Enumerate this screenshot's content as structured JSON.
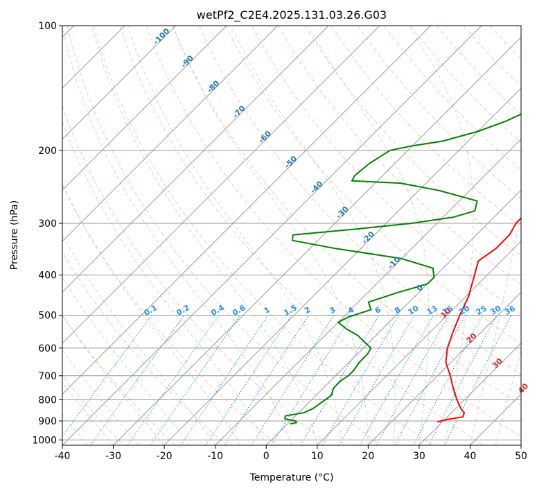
{
  "chart_data": {
    "type": "line",
    "title": "wetPf2_C2E4.2025.131.03.26.G03",
    "xlabel": "Temperature (°C)",
    "ylabel": "Pressure (hPa)",
    "xlim": [
      -40,
      50
    ],
    "ylim": [
      1030,
      100
    ],
    "y_scale": "log",
    "x_ticks": [
      -40,
      -30,
      -20,
      -10,
      0,
      10,
      20,
      30,
      40,
      50
    ],
    "y_ticks": [
      100,
      200,
      300,
      400,
      500,
      600,
      700,
      800,
      900,
      1000
    ],
    "grid": true,
    "series": [
      {
        "color": "#ff0000",
        "pressure": [
          905,
          895,
          880,
          860,
          840,
          800,
          750,
          700,
          650,
          600,
          550,
          500,
          450,
          400,
          370,
          345,
          320,
          300,
          285,
          275,
          260,
          245,
          230,
          215,
          200,
          180,
          160,
          145,
          130,
          120,
          112,
          105,
          100
        ],
        "temperature": [
          29.0,
          30.0,
          33.0,
          32.5,
          31.0,
          28.5,
          25.5,
          22.5,
          19.0,
          16.5,
          14.5,
          12.5,
          10.5,
          7.5,
          5.5,
          6.5,
          6.5,
          5.5,
          5.5,
          6.8,
          9.5,
          12.5,
          14.0,
          14.0,
          13.5,
          12.5,
          11.0,
          10.0,
          9.0,
          9.5,
          10.0,
          10.5,
          10.5
        ]
      },
      {
        "color": "#008000",
        "pressure": [
          915,
          908,
          900,
          890,
          875,
          860,
          840,
          810,
          780,
          750,
          720,
          700,
          680,
          650,
          620,
          600,
          580,
          560,
          540,
          520,
          505,
          485,
          465,
          440,
          420,
          405,
          385,
          365,
          345,
          330,
          320,
          310,
          300,
          290,
          280,
          265,
          250,
          240,
          237,
          230,
          215,
          200,
          195,
          190,
          180,
          170,
          160,
          150,
          140,
          130,
          120,
          110,
          100
        ],
        "temperature": [
          0.5,
          1.5,
          1.0,
          -1.5,
          -2.0,
          1.0,
          2.0,
          2.5,
          3.0,
          2.0,
          2.0,
          2.5,
          2.5,
          2.0,
          2.0,
          1.5,
          -1.0,
          -3.5,
          -7.0,
          -10.0,
          -9.0,
          -6.0,
          -8.0,
          -4.0,
          0.0,
          0.0,
          -2.0,
          -10.0,
          -25.0,
          -35.0,
          -36.0,
          -25.0,
          -15.0,
          -8.0,
          -5.0,
          -6.5,
          -16.0,
          -25.0,
          -35.0,
          -35.5,
          -35.0,
          -33.5,
          -30.0,
          -25.0,
          -20.0,
          -16.5,
          -14.0,
          -12.5,
          -11.0,
          -9.5,
          -8.0,
          -6.0,
          -3.5
        ]
      }
    ],
    "mixing_ratio_labels": [
      "0.1",
      "0.2",
      "0.4",
      "0.6",
      "1",
      "1.5",
      "2",
      "3",
      "4",
      "6",
      "8",
      "10",
      "13",
      "16",
      "20",
      "25",
      "30",
      "36"
    ],
    "isotherm_labels": [
      "-100",
      "-90",
      "-80",
      "-70",
      "-60",
      "-50",
      "-40",
      "-30",
      "-20",
      "-10",
      "0",
      "10",
      "20",
      "30",
      "40"
    ]
  }
}
